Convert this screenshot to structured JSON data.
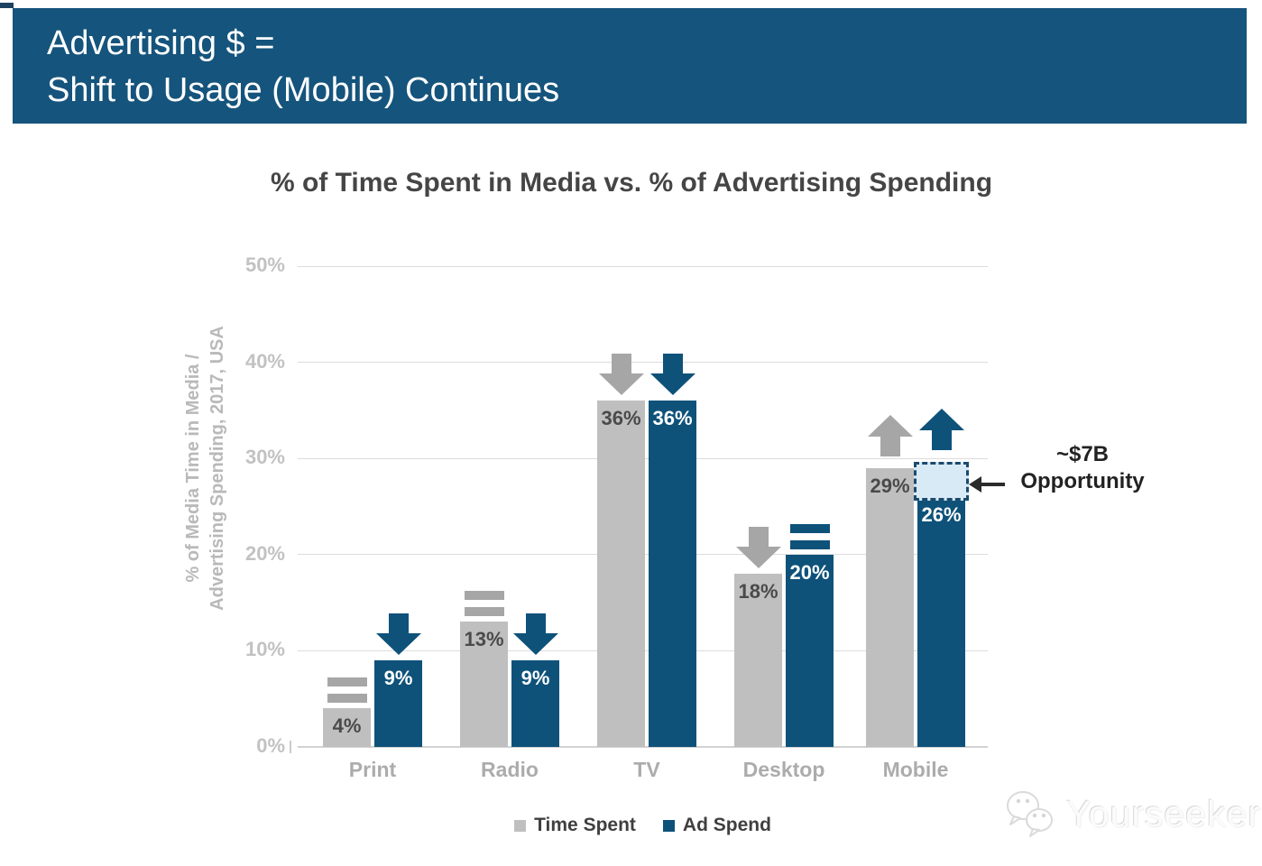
{
  "banner": {
    "line1": "Advertising $ =",
    "line2": "Shift to Usage (Mobile) Continues",
    "bg_color": "#15547c"
  },
  "chart_data": {
    "type": "bar",
    "title": "% of Time Spent in Media vs. % of Advertising Spending",
    "ylabel_line1": "% of Media Time in Media /",
    "ylabel_line2": "Advertising Spending, 2017, USA",
    "categories": [
      "Print",
      "Radio",
      "TV",
      "Desktop",
      "Mobile"
    ],
    "series": [
      {
        "name": "Time Spent",
        "color": "#bfbfbf",
        "marker_color": "#a6a6a6",
        "label_color": "#4a4a4a",
        "values": [
          4,
          13,
          36,
          18,
          29
        ],
        "trend_markers": [
          "equal",
          "equal",
          "down",
          "down",
          "up"
        ]
      },
      {
        "name": "Ad Spend",
        "color": "#0e527a",
        "marker_color": "#0e527a",
        "label_color": "#ffffff",
        "values": [
          9,
          9,
          36,
          20,
          26
        ],
        "trend_markers": [
          "down",
          "down",
          "down",
          "equal",
          "up"
        ]
      }
    ],
    "value_suffix": "%",
    "yticks": [
      "0%",
      "10%",
      "20%",
      "30%",
      "40%",
      "50%"
    ],
    "ylim": [
      0,
      50
    ],
    "grid": true,
    "legend_position": "bottom",
    "annotation": {
      "line1": "~$7B",
      "line2": "Opportunity",
      "category": "Mobile",
      "series": "Ad Spend",
      "gap_from": 26,
      "gap_to": 29.6,
      "box_fill": "#d8eaf6",
      "box_border": "#1b4a6e"
    }
  },
  "legend": [
    {
      "label": "Time Spent",
      "color": "#bfbfbf"
    },
    {
      "label": "Ad Spend",
      "color": "#0e527a"
    }
  ],
  "watermark": {
    "text": "Yourseeker",
    "icon": "wechat-bubbles-icon"
  }
}
